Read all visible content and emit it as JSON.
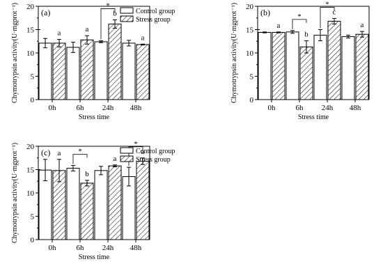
{
  "figure": {
    "width": 550,
    "height": 402
  },
  "legend": {
    "control": "Control group",
    "stress": "Stress group"
  },
  "chart_data": [
    {
      "type": "bar",
      "panel_label": "(a)",
      "categories": [
        "0h",
        "6h",
        "24h",
        "48h"
      ],
      "series": [
        {
          "name": "Control group",
          "values": [
            12.1,
            11.2,
            12.4,
            12.1
          ],
          "errors": [
            1.0,
            1.1,
            0.2,
            0.6
          ]
        },
        {
          "name": "Stress group",
          "values": [
            12.1,
            12.8,
            16.2,
            11.8
          ],
          "errors": [
            0.8,
            0.9,
            0.9,
            0.1
          ]
        }
      ],
      "letters": [
        "a",
        "a",
        "b",
        "a"
      ],
      "significance": [
        2
      ],
      "xlabel": "Stress time",
      "ylabel": "Chymotrypsin activity(U·mgprot⁻¹)",
      "ylim": [
        0,
        20
      ],
      "yticks": [
        0,
        5,
        10,
        15,
        20
      ]
    },
    {
      "type": "bar",
      "panel_label": "(b)",
      "categories": [
        "0h",
        "6h",
        "24h",
        "48h"
      ],
      "series": [
        {
          "name": "Control group",
          "values": [
            14.4,
            14.5,
            13.8,
            13.5
          ],
          "errors": [
            0.1,
            0.3,
            1.2,
            0.3
          ]
        },
        {
          "name": "Stress group",
          "values": [
            14.4,
            11.3,
            16.8,
            14.0
          ],
          "errors": [
            0.1,
            1.3,
            0.6,
            0.6
          ]
        }
      ],
      "letters": [
        "a",
        "b",
        "c",
        "a"
      ],
      "significance": [
        1,
        2
      ],
      "xlabel": "Stress time",
      "ylabel": "Chymotrypsin activity(U·mgprot⁻¹)",
      "ylim": [
        0,
        20
      ],
      "yticks": [
        0,
        5,
        10,
        15,
        20
      ]
    },
    {
      "type": "bar",
      "panel_label": "(c)",
      "categories": [
        "0h",
        "6h",
        "24h",
        "48h"
      ],
      "series": [
        {
          "name": "Control group",
          "values": [
            14.9,
            15.3,
            14.8,
            13.5
          ],
          "errors": [
            2.3,
            0.6,
            0.9,
            2.0
          ]
        },
        {
          "name": "Stress group",
          "values": [
            14.8,
            12.1,
            15.8,
            16.8
          ],
          "errors": [
            2.4,
            0.6,
            0.2,
            0.7
          ]
        }
      ],
      "letters": [
        "a",
        "b",
        "a",
        "a"
      ],
      "significance": [
        1,
        3
      ],
      "xlabel": "Stress time",
      "ylabel": "Chymotrypsin activity(U·mgprot⁻¹)",
      "ylim": [
        0,
        20
      ],
      "yticks": [
        0,
        5,
        10,
        15,
        20
      ]
    }
  ]
}
